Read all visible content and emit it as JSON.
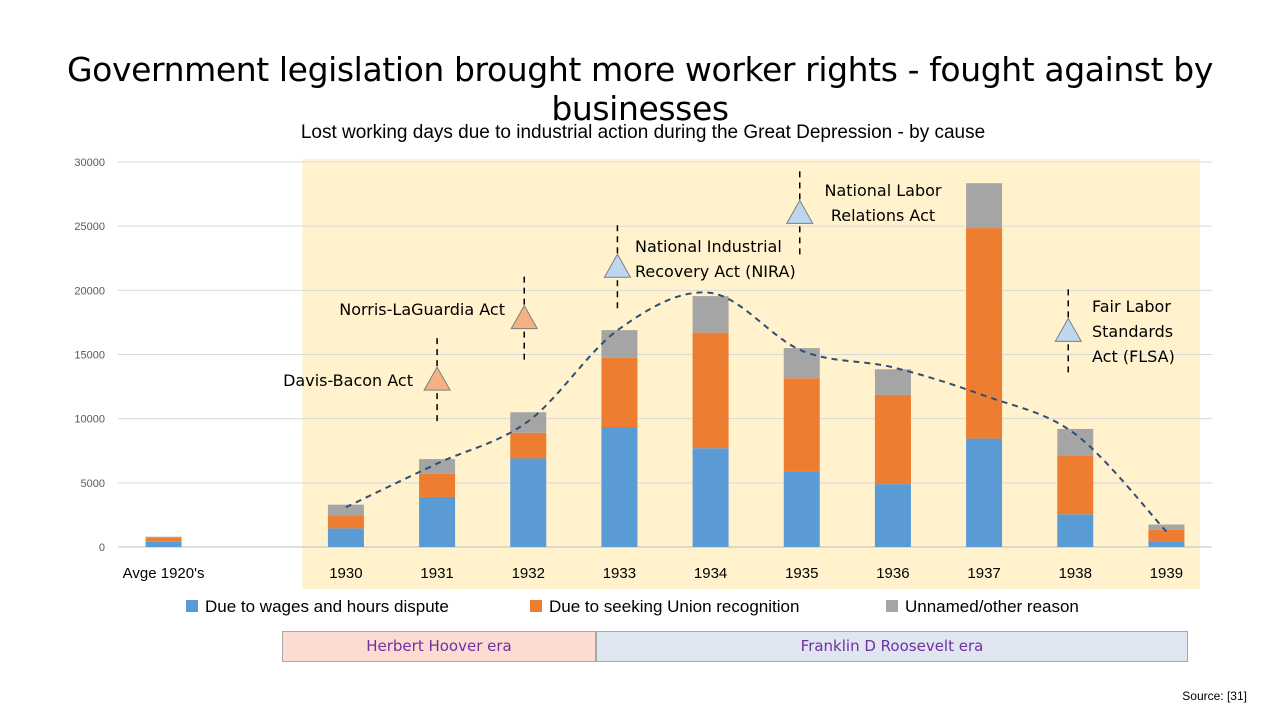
{
  "slide": {
    "title": "Government legislation brought more worker rights - fought against by businesses",
    "source": "Source: [31]"
  },
  "eras": [
    {
      "label": "Herbert Hoover era",
      "color": "#fcdcd2"
    },
    {
      "label": "Franklin D Roosevelt era",
      "color": "#dfe5f1"
    }
  ],
  "colors": {
    "wages": "#5b9bd5",
    "union": "#ed7d31",
    "other": "#a5a5a5",
    "highlight_band": "#fff2cc",
    "trend_line": "#2e4e76",
    "marker_hoover": "#f4b183",
    "marker_fdr": "#bdd7ee"
  },
  "chart_data": {
    "type": "bar",
    "stacked": true,
    "title": "Lost working days due to industrial action during the Great Depression - by cause",
    "categories": [
      "Avge 1920's",
      "",
      "1930",
      "1931",
      "1932",
      "1933",
      "1934",
      "1935",
      "1936",
      "1937",
      "1938",
      "1939"
    ],
    "series": [
      {
        "name": "Due to wages and hours dispute",
        "values": [
          450,
          null,
          1450,
          3900,
          6900,
          9350,
          7700,
          5850,
          4900,
          8450,
          2550,
          450
        ]
      },
      {
        "name": "Due to seeking Union recognition",
        "values": [
          250,
          null,
          1000,
          1800,
          2000,
          5400,
          9000,
          7300,
          6950,
          16400,
          4600,
          900
        ]
      },
      {
        "name": "Unnamed/other reason",
        "values": [
          100,
          null,
          850,
          1150,
          1600,
          2150,
          2850,
          2350,
          2000,
          3500,
          2050,
          400
        ]
      }
    ],
    "trend_line": {
      "style": "dashed",
      "points": [
        [
          "1930",
          3100
        ],
        [
          "1931",
          6500
        ],
        [
          "1932",
          9800
        ],
        [
          "1933",
          17000
        ],
        [
          "1934",
          19800
        ],
        [
          "1935",
          15300
        ],
        [
          "1936",
          14000
        ],
        [
          "1937",
          11800
        ],
        [
          "1938",
          8800
        ],
        [
          "1939",
          1200
        ]
      ]
    },
    "annotations": [
      {
        "label_lines": [
          "Davis-Bacon Act"
        ],
        "era": "hoover",
        "year": "1931",
        "y": 13000
      },
      {
        "label_lines": [
          "Norris-LaGuardia Act"
        ],
        "era": "hoover",
        "year": "1932",
        "y": 17800
      },
      {
        "label_lines": [
          "National Industrial",
          "Recovery Act (NIRA)"
        ],
        "era": "fdr",
        "year": "1933",
        "y": 21800
      },
      {
        "label_lines": [
          "National Labor",
          "Relations Act"
        ],
        "era": "fdr",
        "year": "1935",
        "y": 26000
      },
      {
        "label_lines": [
          "Fair Labor",
          "Standards",
          "Act (FLSA)"
        ],
        "era": "fdr",
        "year": "1938",
        "y": 16800
      }
    ],
    "highlight": {
      "from": "1930",
      "to": "1939"
    },
    "ylim": [
      0,
      30000
    ],
    "yticks": [
      0,
      5000,
      10000,
      15000,
      20000,
      25000,
      30000
    ],
    "grid": true,
    "legend": "bottom"
  }
}
